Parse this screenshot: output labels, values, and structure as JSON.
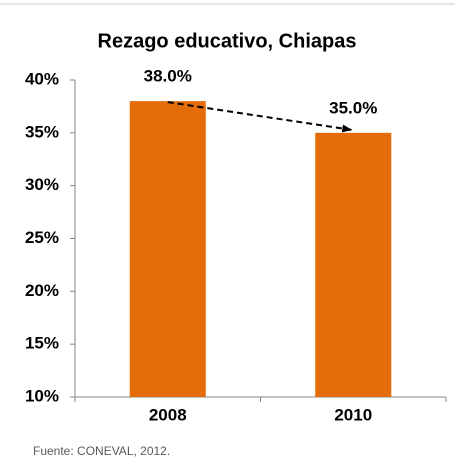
{
  "chart_data": {
    "type": "bar",
    "title": "Rezago educativo, Chiapas",
    "categories": [
      "2008",
      "2010"
    ],
    "values": [
      38,
      35
    ],
    "value_labels": [
      "38.0%",
      "35.0%"
    ],
    "color": "#e46c0a",
    "ylim": [
      10,
      40
    ],
    "yticks": [
      {
        "value": 10,
        "label": "10%"
      },
      {
        "value": 15,
        "label": "15%"
      },
      {
        "value": 20,
        "label": "20%"
      },
      {
        "value": 25,
        "label": "25%"
      },
      {
        "value": 30,
        "label": "30%"
      },
      {
        "value": 35,
        "label": "35%"
      },
      {
        "value": 40,
        "label": "40%"
      }
    ],
    "grid": false,
    "source": "Fuente: CONEVAL, 2012."
  }
}
